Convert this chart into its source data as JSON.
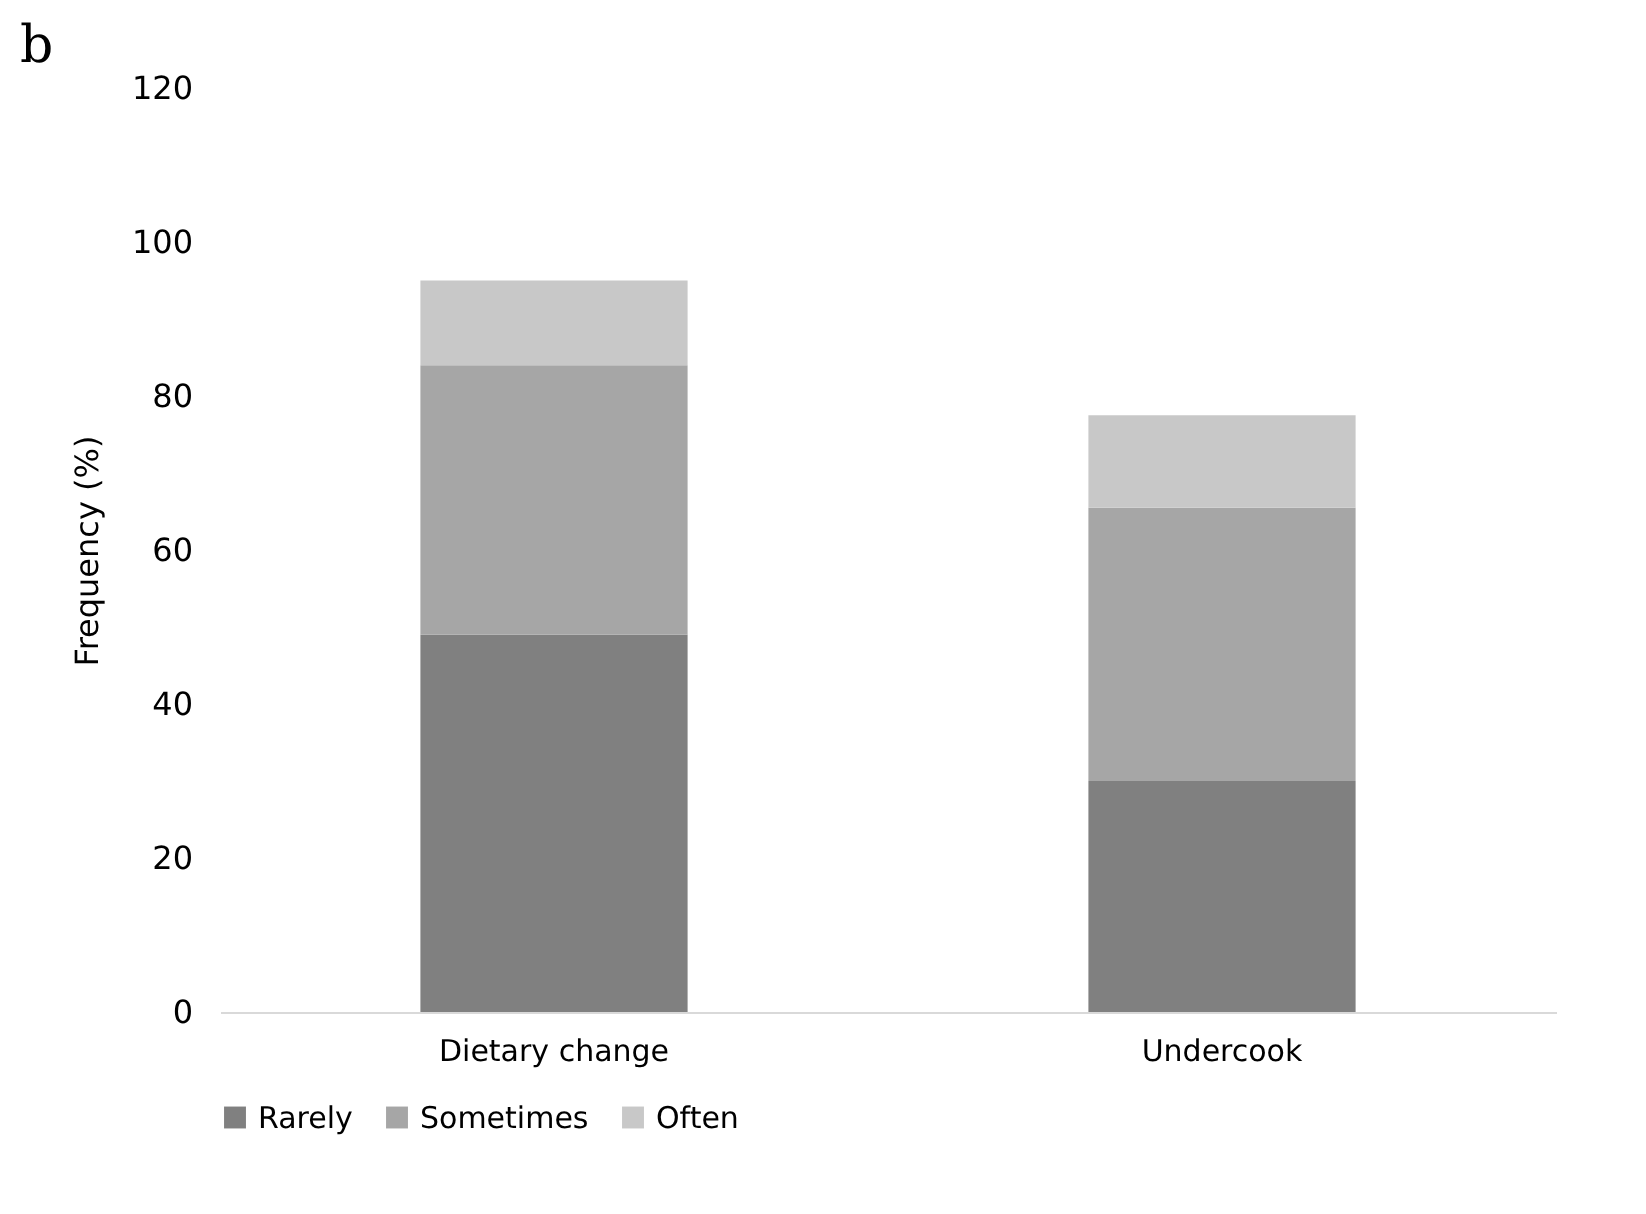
{
  "chart_data": {
    "type": "bar",
    "title": "b",
    "ylabel": "Frequency (%)",
    "categories": [
      "Dietary change",
      "Undercook"
    ],
    "series": [
      {
        "name": "Rarely",
        "color": "#808080",
        "values": [
          49,
          30
        ]
      },
      {
        "name": "Sometimes",
        "color": "#a6a6a6",
        "values": [
          35,
          35.5
        ]
      },
      {
        "name": "Often",
        "color": "#c8c8c8",
        "values": [
          11,
          12
        ]
      }
    ],
    "stacked": true,
    "ylim": [
      0,
      120
    ],
    "yticks": [
      0,
      20,
      40,
      60,
      80,
      100,
      120
    ],
    "grid": false,
    "legend": "bottom"
  }
}
